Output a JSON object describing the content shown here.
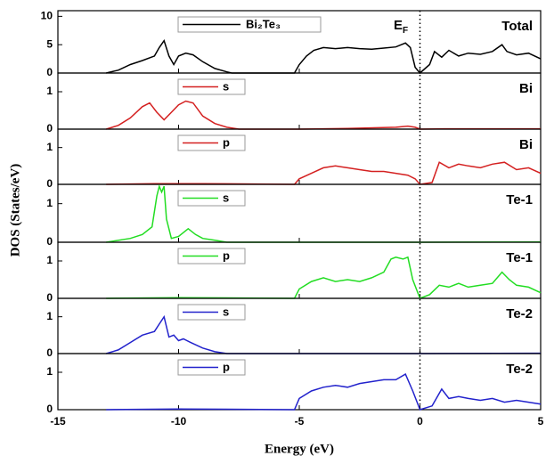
{
  "chart_data": [
    {
      "type": "line",
      "panel_label": "Total",
      "annotation": "EF",
      "fermi_level": 0,
      "ylabel": "DOS (States/eV)",
      "xlim": [
        -15,
        5
      ],
      "ylim": [
        0,
        11
      ],
      "yticks": [
        0,
        5,
        10
      ],
      "x": [
        -13,
        -12.5,
        -12,
        -11.5,
        -11,
        -10.8,
        -10.6,
        -10.4,
        -10.2,
        -10,
        -9.7,
        -9.4,
        -9,
        -8.5,
        -8,
        -7.8,
        -5.2,
        -5,
        -4.7,
        -4.4,
        -4,
        -3.5,
        -3,
        -2.5,
        -2,
        -1.5,
        -1,
        -0.6,
        -0.4,
        -0.2,
        0,
        0.4,
        0.6,
        0.9,
        1.2,
        1.6,
        2,
        2.5,
        3,
        3.4,
        3.6,
        4,
        4.5,
        5
      ],
      "series": [
        {
          "name": "Bi₂Te₃",
          "color": "#000000",
          "values": [
            0,
            0.5,
            1.5,
            2.2,
            3,
            4.5,
            5.7,
            3,
            1.5,
            3,
            3.5,
            3.2,
            2,
            0.8,
            0.2,
            0,
            0,
            1.5,
            3,
            4,
            4.5,
            4.3,
            4.5,
            4.3,
            4.2,
            4.4,
            4.6,
            5.3,
            4.5,
            1,
            0,
            1.5,
            3.8,
            2.8,
            4,
            3,
            3.5,
            3.3,
            3.8,
            5,
            3.8,
            3.2,
            3.5,
            2.5
          ]
        }
      ]
    },
    {
      "type": "line",
      "panel_label": "Bi",
      "xlim": [
        -15,
        5
      ],
      "ylim": [
        0,
        1.5
      ],
      "yticks": [
        0,
        1
      ],
      "x": [
        -13,
        -12.5,
        -12,
        -11.5,
        -11.2,
        -10.9,
        -10.6,
        -10.3,
        -10,
        -9.7,
        -9.4,
        -9,
        -8.5,
        -8,
        -7.5,
        -5,
        -3,
        -1,
        -0.5,
        -0.2,
        0,
        1,
        3,
        5
      ],
      "series": [
        {
          "name": "s",
          "color": "#d42020",
          "values": [
            0,
            0.1,
            0.3,
            0.6,
            0.7,
            0.45,
            0.25,
            0.45,
            0.65,
            0.75,
            0.7,
            0.35,
            0.15,
            0.05,
            0,
            0,
            0.02,
            0.05,
            0.08,
            0.05,
            0,
            0.01,
            0.01,
            0.01
          ]
        }
      ]
    },
    {
      "type": "line",
      "panel_label": "Bi",
      "xlim": [
        -15,
        5
      ],
      "ylim": [
        0,
        1.5
      ],
      "yticks": [
        0,
        1
      ],
      "x": [
        -13,
        -11,
        -9,
        -5.2,
        -5,
        -4.5,
        -4,
        -3.5,
        -3,
        -2.5,
        -2,
        -1.5,
        -1,
        -0.5,
        -0.2,
        0,
        0.5,
        0.8,
        1.2,
        1.6,
        2,
        2.5,
        3,
        3.5,
        4,
        4.5,
        5
      ],
      "series": [
        {
          "name": "p",
          "color": "#d42020",
          "values": [
            0,
            0.02,
            0.02,
            0,
            0.15,
            0.3,
            0.45,
            0.5,
            0.45,
            0.4,
            0.35,
            0.35,
            0.3,
            0.25,
            0.15,
            0,
            0.05,
            0.6,
            0.45,
            0.55,
            0.5,
            0.45,
            0.55,
            0.6,
            0.4,
            0.45,
            0.3
          ]
        }
      ]
    },
    {
      "type": "line",
      "panel_label": "Te-1",
      "xlim": [
        -15,
        5
      ],
      "ylim": [
        0,
        1.5
      ],
      "yticks": [
        0,
        1
      ],
      "x": [
        -13,
        -12,
        -11.5,
        -11.1,
        -10.9,
        -10.8,
        -10.7,
        -10.6,
        -10.5,
        -10.3,
        -10,
        -9.6,
        -9.3,
        -9,
        -8.5,
        -8,
        -5,
        0,
        5
      ],
      "series": [
        {
          "name": "s",
          "color": "#22dd22",
          "values": [
            0,
            0.1,
            0.2,
            0.4,
            1.2,
            1.45,
            1.3,
            1.45,
            0.6,
            0.1,
            0.15,
            0.35,
            0.2,
            0.1,
            0.05,
            0,
            0,
            0,
            0.01
          ]
        }
      ]
    },
    {
      "type": "line",
      "panel_label": "Te-1",
      "xlim": [
        -15,
        5
      ],
      "ylim": [
        0,
        1.5
      ],
      "yticks": [
        0,
        1
      ],
      "x": [
        -13,
        -10,
        -5.2,
        -5,
        -4.5,
        -4,
        -3.5,
        -3,
        -2.5,
        -2,
        -1.5,
        -1.2,
        -1,
        -0.7,
        -0.5,
        -0.3,
        0,
        0.4,
        0.8,
        1.2,
        1.6,
        2,
        2.5,
        3,
        3.4,
        3.7,
        4,
        4.5,
        5
      ],
      "series": [
        {
          "name": "p",
          "color": "#22dd22",
          "values": [
            0,
            0.02,
            0,
            0.25,
            0.45,
            0.55,
            0.45,
            0.5,
            0.45,
            0.55,
            0.7,
            1.05,
            1.1,
            1.05,
            1.1,
            0.5,
            0,
            0.1,
            0.35,
            0.3,
            0.4,
            0.3,
            0.35,
            0.4,
            0.7,
            0.5,
            0.35,
            0.3,
            0.15
          ]
        }
      ]
    },
    {
      "type": "line",
      "panel_label": "Te-2",
      "xlim": [
        -15,
        5
      ],
      "ylim": [
        0,
        1.5
      ],
      "yticks": [
        0,
        1
      ],
      "x": [
        -13,
        -12.5,
        -12,
        -11.5,
        -11,
        -10.8,
        -10.6,
        -10.4,
        -10.2,
        -10,
        -9.8,
        -9.5,
        -9,
        -8.5,
        -8,
        -5,
        0,
        5
      ],
      "series": [
        {
          "name": "s",
          "color": "#2222cc",
          "values": [
            0,
            0.1,
            0.3,
            0.5,
            0.6,
            0.8,
            1.0,
            0.45,
            0.5,
            0.35,
            0.4,
            0.3,
            0.15,
            0.05,
            0,
            0,
            0,
            0.01
          ]
        }
      ]
    },
    {
      "type": "line",
      "panel_label": "Te-2",
      "xlabel": "Energy (eV)",
      "xlim": [
        -15,
        5
      ],
      "ylim": [
        0,
        1.5
      ],
      "yticks": [
        0,
        1
      ],
      "xticks": [
        -15,
        -10,
        -5,
        0,
        5
      ],
      "x": [
        -13,
        -10,
        -5.2,
        -5,
        -4.5,
        -4,
        -3.5,
        -3,
        -2.5,
        -2,
        -1.5,
        -1,
        -0.6,
        -0.3,
        0,
        0.5,
        0.9,
        1.2,
        1.6,
        2,
        2.5,
        3,
        3.5,
        4,
        4.5,
        5
      ],
      "series": [
        {
          "name": "p",
          "color": "#2222cc",
          "values": [
            0,
            0.02,
            0,
            0.3,
            0.5,
            0.6,
            0.65,
            0.6,
            0.7,
            0.75,
            0.8,
            0.8,
            0.95,
            0.5,
            0,
            0.1,
            0.55,
            0.3,
            0.35,
            0.3,
            0.25,
            0.3,
            0.2,
            0.25,
            0.2,
            0.15
          ]
        }
      ]
    }
  ]
}
